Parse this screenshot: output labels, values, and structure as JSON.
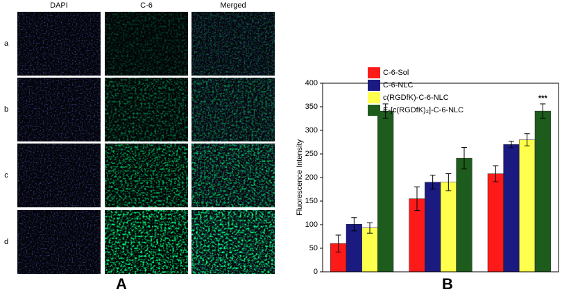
{
  "panel_a": {
    "label": "A",
    "columns": [
      "DAPI",
      "C-6",
      "Merged"
    ],
    "rows": [
      "a",
      "b",
      "c",
      "d"
    ]
  },
  "chart_data": {
    "type": "bar",
    "panel_label": "B",
    "y_label": "Fluorescence Intensity",
    "categories": [
      null,
      null,
      null
    ],
    "series": [
      {
        "name": "C-6-Sol",
        "color": "#ff1a1a",
        "values": [
          60,
          155,
          208
        ],
        "error": [
          18,
          25,
          17
        ]
      },
      {
        "name": "C-6-NLC",
        "color": "#1a1a80",
        "values": [
          101,
          190,
          270
        ],
        "error": [
          14,
          15,
          7
        ]
      },
      {
        "name": "c(RGDfK)-C-6-NLC",
        "color": "#ffff4d",
        "values": [
          93,
          190,
          280
        ],
        "error": [
          11,
          18,
          13
        ]
      },
      {
        "name": "E-[c(RGDfK)₂]-C-6-NLC",
        "color": "#1d5c1d",
        "values": [
          341,
          241,
          341
        ],
        "error": [
          15,
          23,
          15
        ]
      }
    ],
    "significance": {
      "text": "***",
      "series": 3,
      "index": 2
    },
    "ylim": [
      0,
      400
    ],
    "yticks": [
      0,
      50,
      100,
      150,
      200,
      250,
      300,
      350,
      400
    ],
    "legend": "top-left"
  }
}
